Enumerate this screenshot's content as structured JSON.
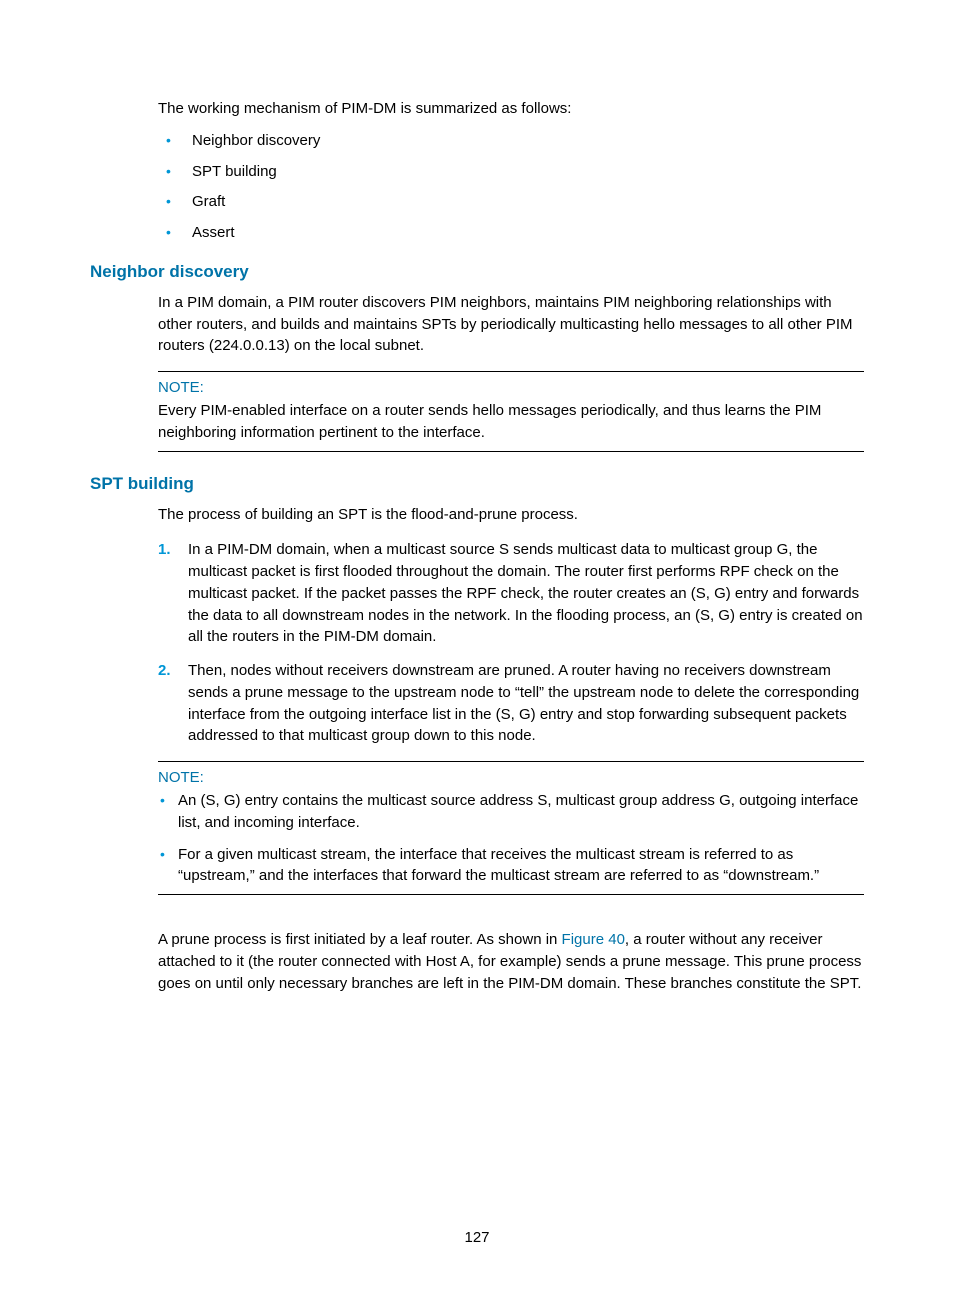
{
  "colors": {
    "heading": "#0073a8",
    "bullet": "#0096d6",
    "text": "#000000",
    "background": "#ffffff",
    "note_border": "#000000",
    "link": "#0073a8"
  },
  "typography": {
    "body_fontsize_pt": 11,
    "heading_fontsize_pt": 13,
    "font_family": "Arial"
  },
  "intro": "The working mechanism of PIM-DM is summarized as follows:",
  "intro_bullets": [
    "Neighbor discovery",
    "SPT building",
    "Graft",
    "Assert"
  ],
  "section1": {
    "title": "Neighbor discovery",
    "para": "In a PIM domain, a PIM router discovers PIM neighbors, maintains PIM neighboring relationships with other routers, and builds and maintains SPTs by periodically multicasting hello messages to all other PIM routers (224.0.0.13) on the local subnet.",
    "note_label": "NOTE:",
    "note_text": "Every PIM-enabled interface on a router sends hello messages periodically, and thus learns the PIM neighboring information pertinent to the interface."
  },
  "section2": {
    "title": "SPT building",
    "para": "The process of building an SPT is the flood-and-prune process.",
    "steps": [
      "In a PIM-DM domain, when a multicast source S sends multicast data to multicast group G, the multicast packet is first flooded throughout the domain. The router first performs RPF check on the multicast packet. If the packet passes the RPF check, the router creates an (S, G) entry and forwards the data to all downstream nodes in the network. In the flooding process, an (S, G) entry is created on all the routers in the PIM-DM domain.",
      "Then, nodes without receivers downstream are pruned. A router having no receivers downstream sends a prune message to the upstream node to “tell” the upstream node to delete the corresponding interface from the outgoing interface list in the (S, G) entry and stop forwarding subsequent packets addressed to that multicast group down to this node."
    ],
    "note_label": "NOTE:",
    "note_bullets": [
      "An (S, G) entry contains the multicast source address S, multicast group address G, outgoing interface list, and incoming interface.",
      "For a given multicast stream, the interface that receives the multicast stream is referred to as “upstream,” and the interfaces that forward the multicast stream are referred to as “downstream.”"
    ],
    "closing_before": "A prune process is first initiated by a leaf router. As shown in ",
    "closing_link": "Figure 40",
    "closing_after": ", a router without any receiver attached to it (the router connected with Host A, for example) sends a prune message. This prune process goes on until only necessary branches are left in the PIM-DM domain. These branches constitute the SPT."
  },
  "page_number": "127"
}
